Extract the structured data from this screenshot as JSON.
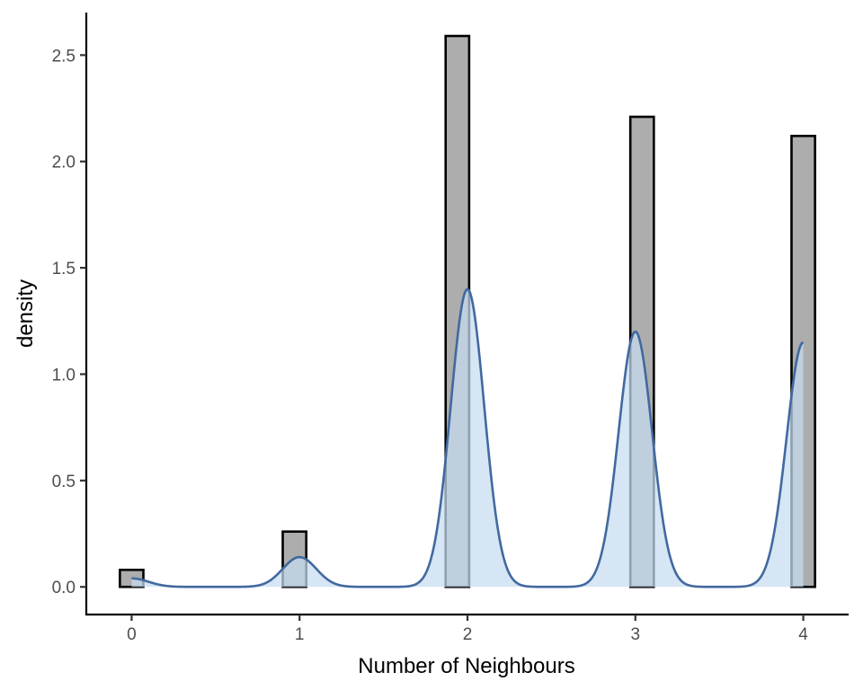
{
  "chart_data": {
    "type": "bar",
    "title": "",
    "xlabel": "Number of Neighbours",
    "ylabel": "density",
    "xlim": [
      -0.27,
      4.27
    ],
    "ylim": [
      -0.13,
      2.7
    ],
    "xticks": [
      0,
      1,
      2,
      3,
      4
    ],
    "xtick_labels": [
      "0",
      "1",
      "2",
      "3",
      "4"
    ],
    "yticks": [
      0.0,
      0.5,
      1.0,
      1.5,
      2.0,
      2.5
    ],
    "ytick_labels": [
      "0.0",
      "0.5",
      "1.0",
      "1.5",
      "2.0",
      "2.5"
    ],
    "grid": false,
    "legend": "none",
    "histogram": {
      "bins": [
        {
          "x_start": -0.07,
          "x_end": 0.07,
          "density": 0.08
        },
        {
          "x_start": 0.9,
          "x_end": 1.04,
          "density": 0.26
        },
        {
          "x_start": 1.87,
          "x_end": 2.01,
          "density": 2.59
        },
        {
          "x_start": 2.97,
          "x_end": 3.11,
          "density": 2.21
        },
        {
          "x_start": 3.93,
          "x_end": 4.07,
          "density": 2.12
        }
      ],
      "fill": "#adadad",
      "stroke": "#000000"
    },
    "density_curve": {
      "x_range": [
        0,
        4
      ],
      "bandwidth": 0.1,
      "peaks": [
        {
          "center": 0,
          "height": 0.04
        },
        {
          "center": 1,
          "height": 0.14
        },
        {
          "center": 2,
          "height": 1.4
        },
        {
          "center": 3,
          "height": 1.2
        },
        {
          "center": 4,
          "height": 1.15
        }
      ],
      "fill": "#c6dcf0",
      "stroke": "#4169a0"
    }
  }
}
